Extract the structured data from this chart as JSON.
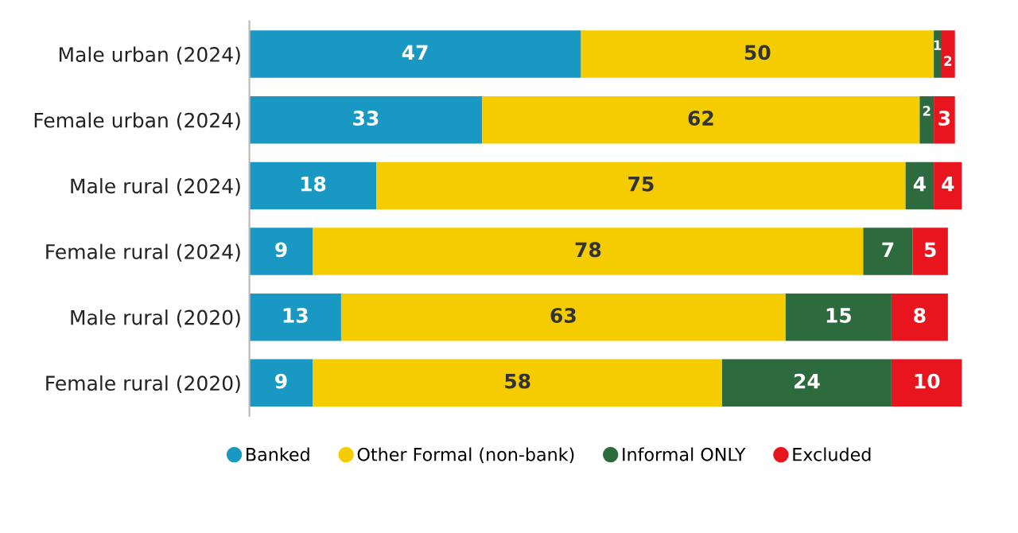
{
  "chart_data": {
    "type": "bar",
    "orientation": "horizontal",
    "stacked": true,
    "data_labels": true,
    "legend": "bottom",
    "grid": false,
    "categories": [
      "Male urban (2024)",
      "Female urban (2024)",
      "Male rural (2024)",
      "Female rural (2024)",
      "Male rural (2020)",
      "Female rural (2020)"
    ],
    "series": [
      {
        "name": "Banked",
        "color": "#1a98c4",
        "values": [
          47,
          33,
          18,
          9,
          13,
          9
        ]
      },
      {
        "name": "Other Formal (non-bank)",
        "color": "#f5cc00",
        "values": [
          50,
          62,
          75,
          78,
          63,
          58
        ]
      },
      {
        "name": "Informal ONLY",
        "color": "#2d6a3e",
        "values": [
          1,
          2,
          4,
          7,
          15,
          24
        ]
      },
      {
        "name": "Excluded",
        "color": "#e8141e",
        "values": [
          2,
          3,
          4,
          5,
          8,
          10
        ]
      }
    ]
  }
}
